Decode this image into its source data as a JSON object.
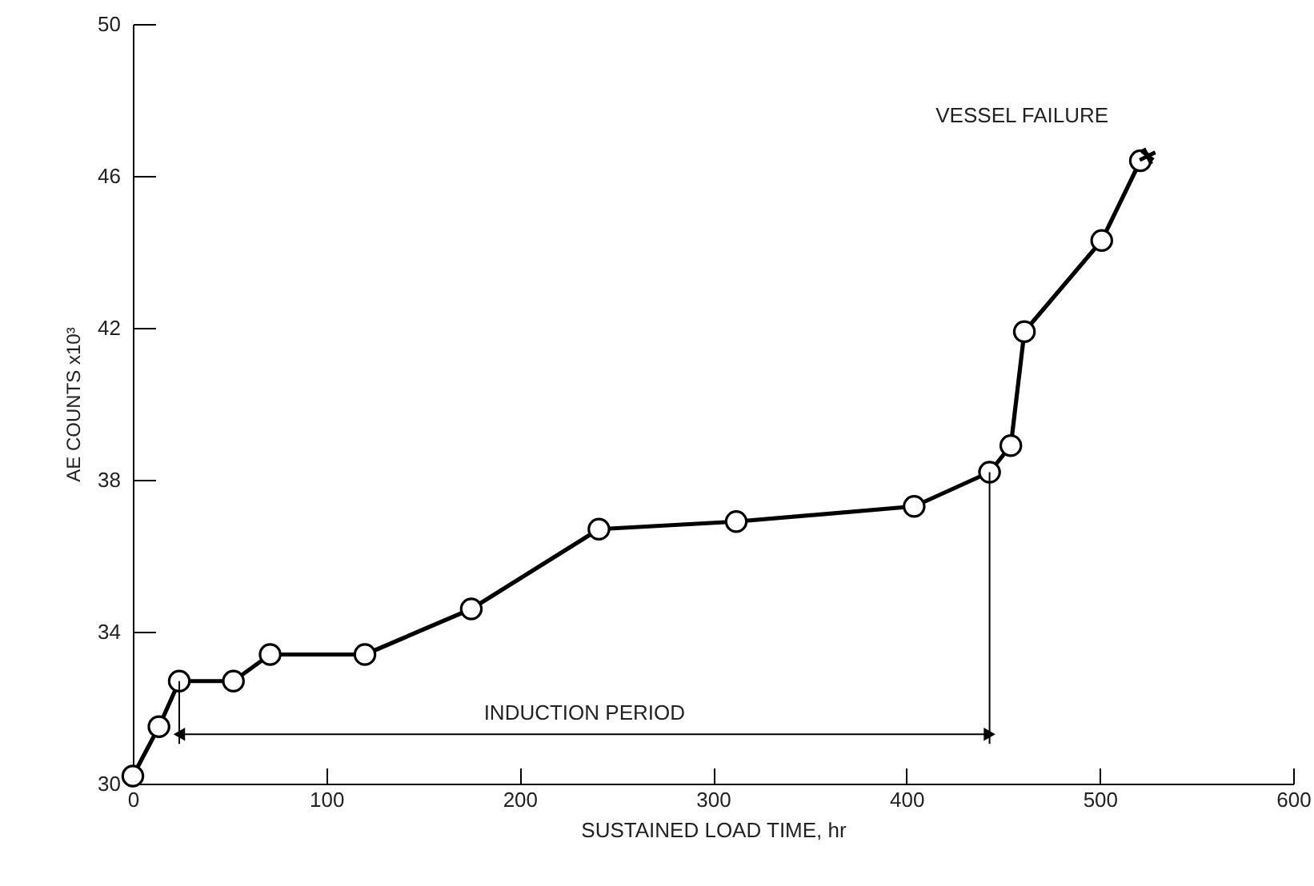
{
  "chart_data": {
    "type": "line",
    "xlabel": "SUSTAINED LOAD TIME, hr",
    "ylabel": "AE COUNTS x10³",
    "x": [
      0,
      13.5,
      24,
      52,
      71,
      120,
      175,
      241,
      312,
      404,
      443,
      454,
      461,
      501,
      521
    ],
    "series": [
      {
        "color": "#000000",
        "values": [
          30.2,
          31.5,
          32.7,
          32.7,
          33.4,
          33.4,
          34.6,
          36.7,
          36.9,
          37.3,
          38.2,
          38.9,
          41.9,
          44.3,
          46.4
        ]
      }
    ],
    "xlim": [
      0,
      600
    ],
    "xticks": [
      0,
      100,
      200,
      300,
      400,
      500,
      600
    ],
    "ylim": [
      30,
      50
    ],
    "yticks": [
      30,
      34,
      38,
      42,
      46,
      50
    ],
    "grid": false,
    "marker": "circle",
    "line_style": "solid",
    "ref_lines": [
      {
        "axis": "x",
        "value": 24
      },
      {
        "axis": "x",
        "value": 443
      }
    ],
    "annotations": [
      "INDUCTION PERIOD",
      {
        "text": "VESSEL FAILURE",
        "x": 521,
        "y": 46.4
      }
    ]
  }
}
